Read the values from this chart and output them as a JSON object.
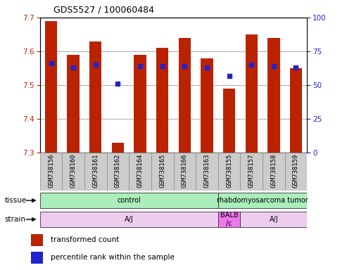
{
  "title": "GDS5527 / 100060484",
  "samples": [
    "GSM738156",
    "GSM738160",
    "GSM738161",
    "GSM738162",
    "GSM738164",
    "GSM738165",
    "GSM738166",
    "GSM738163",
    "GSM738155",
    "GSM738157",
    "GSM738158",
    "GSM738159"
  ],
  "bar_values": [
    7.69,
    7.59,
    7.63,
    7.33,
    7.59,
    7.61,
    7.64,
    7.58,
    7.49,
    7.65,
    7.64,
    7.55
  ],
  "percentile_values": [
    66,
    63,
    65,
    51,
    64,
    64,
    64,
    63,
    57,
    65,
    64,
    63
  ],
  "ylim_left": [
    7.3,
    7.7
  ],
  "ylim_right": [
    0,
    100
  ],
  "yticks_left": [
    7.3,
    7.4,
    7.5,
    7.6,
    7.7
  ],
  "yticks_right": [
    0,
    25,
    50,
    75,
    100
  ],
  "bar_color": "#BB2200",
  "dot_color": "#2222CC",
  "bar_width": 0.55,
  "tissue_rects": [
    {
      "label": "control",
      "start": 0,
      "end": 8,
      "color": "#99EE99"
    },
    {
      "label": "rhabdomyosarcoma tumor",
      "start": 8,
      "end": 12,
      "color": "#99EE99"
    }
  ],
  "strain_rects": [
    {
      "label": "A/J",
      "start": 0,
      "end": 8,
      "color": "#EEBB EE"
    },
    {
      "label": "BALB\n/c",
      "start": 8,
      "end": 9,
      "color": "#EE66EE"
    },
    {
      "label": "A/J",
      "start": 9,
      "end": 12,
      "color": "#EEBBEEE"
    }
  ],
  "legend_items": [
    {
      "label": "transformed count",
      "color": "#BB2200"
    },
    {
      "label": "percentile rank within the sample",
      "color": "#2222CC"
    }
  ],
  "background_color": "#ffffff",
  "tick_color_left": "#BB2200",
  "tick_color_right": "#2222CC",
  "sample_box_color": "#CCCCCC",
  "tissue_control_color": "#AAEEBB",
  "tissue_tumor_color": "#AAEEBB",
  "strain_aj_color": "#EECCEE",
  "strain_balb_color": "#EE66EE"
}
